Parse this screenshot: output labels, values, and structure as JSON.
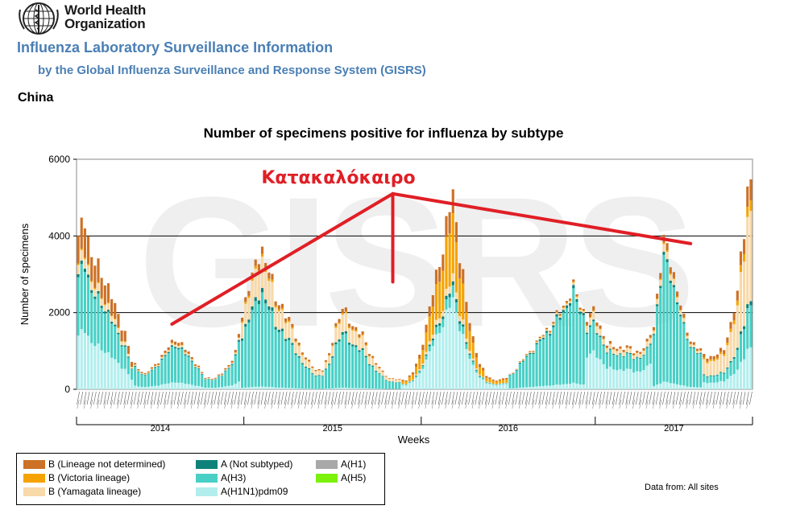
{
  "header": {
    "org_line1": "World Health",
    "org_line2": "Organization",
    "title": "Influenza Laboratory Surveillance Information",
    "subtitle": "by the Global Influenza Surveillance and Response System (GISRS)",
    "country": "China"
  },
  "footer": {
    "source": "Data from: All sites"
  },
  "colors": {
    "b_not_determined": "#cc7126",
    "b_victoria": "#f5a300",
    "b_yamagata": "#f8d9a8",
    "a_not_subtyped": "#0e827a",
    "a_h3": "#48d0c6",
    "a_h1n1pdm09": "#b3eeee",
    "a_h1": "#a9a9a9",
    "a_h5": "#7cf10c",
    "annotation": "#e01f26"
  },
  "chart_data": {
    "type": "stacked-bar",
    "title": "Number of specimens positive for influenza by subtype",
    "xlabel": "Weeks",
    "ylabel": "Number of specimens",
    "ylim": [
      0,
      6000
    ],
    "yticks": [
      0,
      2000,
      4000,
      6000
    ],
    "gridlines": [
      2000,
      4000
    ],
    "watermark": "GISRS",
    "years": [
      "2014",
      "2015",
      "2016",
      "2017"
    ],
    "week_tick_labels": "rotated ISO week labels shown under every bar (illegible at this resolution)",
    "legend": [
      {
        "key": "b_not_determined",
        "label": "B (Lineage not determined)"
      },
      {
        "key": "a_not_subtyped",
        "label": "A (Not subtyped)"
      },
      {
        "key": "a_h1",
        "label": "A(H1)"
      },
      {
        "key": "b_victoria",
        "label": "B (Victoria lineage)"
      },
      {
        "key": "a_h3",
        "label": "A(H3)"
      },
      {
        "key": "a_h5",
        "label": "A(H5)"
      },
      {
        "key": "b_yamagata",
        "label": "B (Yamagata lineage)"
      },
      {
        "key": "a_h1n1pdm09",
        "label": "A(H1N1)pdm09"
      }
    ],
    "annotation": {
      "text": "Κατακαλόκαιρο",
      "apex": [
        94,
        5100
      ],
      "rays_to": [
        [
          28,
          1700
        ],
        [
          94,
          2800
        ],
        [
          183,
          3800
        ]
      ]
    },
    "total_keypoints": [
      [
        0,
        3850
      ],
      [
        2,
        4600
      ],
      [
        4,
        3400
      ],
      [
        8,
        2900
      ],
      [
        12,
        1900
      ],
      [
        14,
        1500
      ],
      [
        16,
        720
      ],
      [
        20,
        400
      ],
      [
        22,
        550
      ],
      [
        24,
        750
      ],
      [
        27,
        1100
      ],
      [
        29,
        1350
      ],
      [
        31,
        1150
      ],
      [
        34,
        850
      ],
      [
        36,
        580
      ],
      [
        38,
        300
      ],
      [
        41,
        300
      ],
      [
        43,
        420
      ],
      [
        45,
        650
      ],
      [
        47,
        950
      ],
      [
        49,
        1900
      ],
      [
        51,
        2800
      ],
      [
        53,
        3150
      ],
      [
        55,
        3650
      ],
      [
        57,
        3200
      ],
      [
        59,
        2300
      ],
      [
        61,
        2200
      ],
      [
        63,
        1800
      ],
      [
        65,
        1400
      ],
      [
        67,
        1000
      ],
      [
        69,
        700
      ],
      [
        71,
        520
      ],
      [
        73,
        520
      ],
      [
        75,
        900
      ],
      [
        77,
        1700
      ],
      [
        79,
        2100
      ],
      [
        81,
        1800
      ],
      [
        83,
        1600
      ],
      [
        85,
        1400
      ],
      [
        87,
        1000
      ],
      [
        89,
        700
      ],
      [
        91,
        450
      ],
      [
        93,
        300
      ],
      [
        96,
        250
      ],
      [
        98,
        250
      ],
      [
        100,
        450
      ],
      [
        102,
        850
      ],
      [
        104,
        1700
      ],
      [
        106,
        2500
      ],
      [
        108,
        3300
      ],
      [
        110,
        4300
      ],
      [
        112,
        5050
      ],
      [
        113,
        4200
      ],
      [
        115,
        3100
      ],
      [
        116,
        2200
      ],
      [
        118,
        1300
      ],
      [
        120,
        700
      ],
      [
        122,
        350
      ],
      [
        124,
        250
      ],
      [
        126,
        250
      ],
      [
        128,
        300
      ],
      [
        131,
        550
      ],
      [
        133,
        800
      ],
      [
        135,
        1000
      ],
      [
        137,
        1200
      ],
      [
        139,
        1450
      ],
      [
        141,
        1650
      ],
      [
        143,
        1900
      ],
      [
        145,
        2150
      ],
      [
        147,
        2550
      ],
      [
        148,
        2650
      ],
      [
        150,
        2200
      ],
      [
        152,
        1900
      ],
      [
        154,
        2000
      ],
      [
        156,
        1650
      ],
      [
        158,
        1200
      ],
      [
        160,
        1100
      ],
      [
        162,
        1100
      ],
      [
        164,
        1100
      ],
      [
        166,
        1000
      ],
      [
        168,
        1000
      ],
      [
        170,
        1200
      ],
      [
        172,
        1700
      ],
      [
        174,
        3200
      ],
      [
        175,
        3800
      ],
      [
        177,
        3450
      ],
      [
        179,
        2600
      ],
      [
        181,
        1800
      ],
      [
        183,
        1300
      ],
      [
        185,
        1100
      ],
      [
        187,
        900
      ],
      [
        189,
        850
      ],
      [
        191,
        900
      ],
      [
        193,
        1100
      ],
      [
        195,
        1700
      ],
      [
        197,
        2400
      ],
      [
        198,
        3600
      ],
      [
        199,
        4300
      ],
      [
        200,
        5100
      ],
      [
        201,
        5500
      ]
    ],
    "composition_by_period": [
      {
        "from": 0,
        "to": 16,
        "b_not_determined": 0.18,
        "b_victoria": 0.01,
        "b_yamagata": 0.06,
        "a_not_subtyped": 0.02,
        "a_h3": 0.38,
        "a_h1n1pdm09": 0.35
      },
      {
        "from": 17,
        "to": 48,
        "b_not_determined": 0.06,
        "b_victoria": 0.01,
        "b_yamagata": 0.04,
        "a_not_subtyped": 0.03,
        "a_h3": 0.72,
        "a_h1n1pdm09": 0.14
      },
      {
        "from": 49,
        "to": 96,
        "b_not_determined": 0.05,
        "b_victoria": 0.02,
        "b_yamagata": 0.22,
        "a_not_subtyped": 0.03,
        "a_h3": 0.66,
        "a_h1n1pdm09": 0.02
      },
      {
        "from": 97,
        "to": 128,
        "b_not_determined": 0.12,
        "b_victoria": 0.3,
        "b_yamagata": 0.04,
        "a_not_subtyped": 0.02,
        "a_h3": 0.06,
        "a_h1n1pdm09": 0.46
      },
      {
        "from": 129,
        "to": 151,
        "b_not_determined": 0.02,
        "b_victoria": 0.01,
        "b_yamagata": 0.02,
        "a_not_subtyped": 0.03,
        "a_h3": 0.86,
        "a_h1n1pdm09": 0.06
      },
      {
        "from": 152,
        "to": 171,
        "b_not_determined": 0.05,
        "b_victoria": 0.01,
        "b_yamagata": 0.1,
        "a_not_subtyped": 0.02,
        "a_h3": 0.35,
        "a_h1n1pdm09": 0.47
      },
      {
        "from": 172,
        "to": 186,
        "b_not_determined": 0.05,
        "b_victoria": 0.01,
        "b_yamagata": 0.05,
        "a_not_subtyped": 0.02,
        "a_h3": 0.82,
        "a_h1n1pdm09": 0.05
      },
      {
        "from": 187,
        "to": 201,
        "b_not_determined": 0.1,
        "b_victoria": 0.05,
        "b_yamagata": 0.43,
        "a_not_subtyped": 0.02,
        "a_h3": 0.2,
        "a_h1n1pdm09": 0.2
      }
    ]
  }
}
